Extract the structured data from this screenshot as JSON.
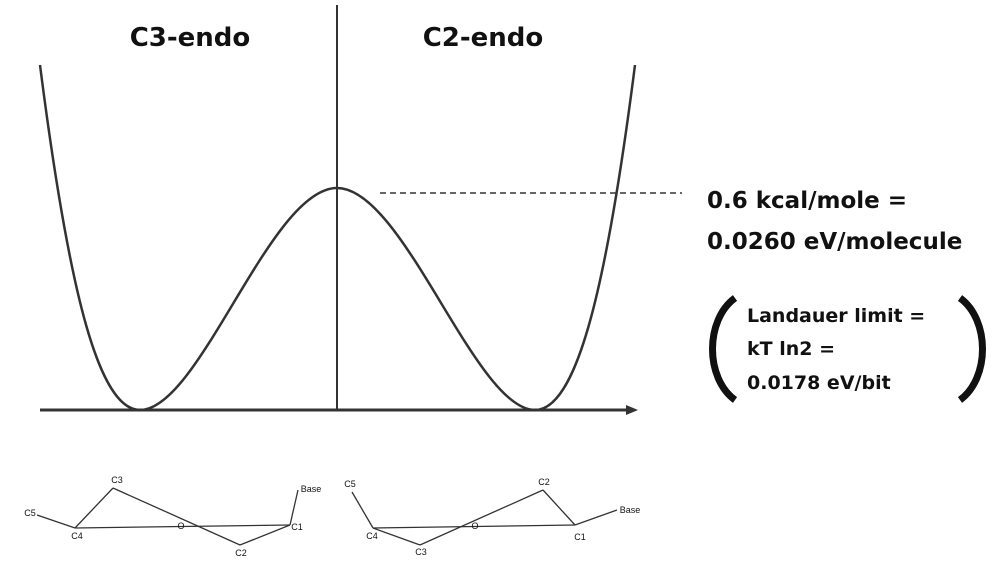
{
  "regions": [
    "C3-endo",
    "C2-endo"
  ],
  "barrier": {
    "lines": [
      "0.6 kcal/mole =",
      "0.0260 eV/molecule"
    ]
  },
  "landauer": {
    "lines": [
      "Landauer limit =",
      "kT ln2 =",
      "0.0178 eV/bit"
    ]
  },
  "conformers": [
    {
      "atoms": [
        "C3",
        "C5",
        "C4",
        "O",
        "C2",
        "C1",
        "Base"
      ]
    },
    {
      "atoms": [
        "C5",
        "C4",
        "C3",
        "O",
        "C2",
        "C1",
        "Base"
      ]
    }
  ]
}
